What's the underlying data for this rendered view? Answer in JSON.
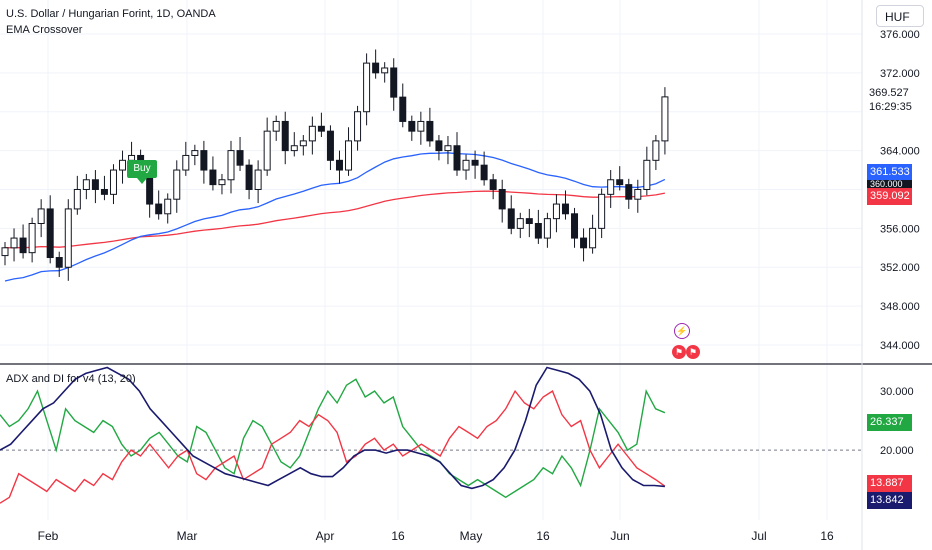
{
  "header": {
    "title": "U.S. Dollar / Hungarian Forint, 1D, OANDA",
    "indicator": "EMA Crossover",
    "currency": "HUF"
  },
  "price_info": {
    "last": "369.527",
    "countdown": "16:29:35"
  },
  "badges": {
    "ema_fast": "361.533",
    "ema_slow": "359.092",
    "green_di": "26.337",
    "red_di": "13.887",
    "adx": "13.842",
    "hidden_level": "360.000"
  },
  "signal": {
    "label": "Buy"
  },
  "subpane": {
    "title": "ADX and DI for v4 (13, 20)"
  },
  "colors": {
    "up": "#089981",
    "down": "#131722",
    "ema_fast": "#2962ff",
    "ema_slow": "#f23645",
    "di_plus": "#22a843",
    "di_minus": "#f23645",
    "adx": "#1a1a6e",
    "buy": "#22a843"
  },
  "chart_data": [
    {
      "type": "candlestick",
      "symbol": "USDHUF",
      "yticks": [
        344,
        348,
        352,
        356,
        360,
        364,
        368,
        372,
        376
      ],
      "ytick_labels": [
        "344.000",
        "348.000",
        "352.000",
        "356.000",
        "",
        "364.000",
        "",
        "372.000",
        "376.000"
      ],
      "xticks": [
        "Feb",
        "Mar",
        "Apr",
        "16",
        "May",
        "16",
        "Jun",
        "Jul",
        "16"
      ],
      "close_path": [
        354,
        355,
        353.5,
        356.5,
        358,
        353,
        352,
        358,
        360,
        361,
        360,
        359.5,
        362,
        363,
        363.5,
        362,
        358.5,
        357.5,
        359,
        362,
        363.5,
        364,
        362,
        360.5,
        361,
        364,
        362.5,
        360,
        362,
        366,
        367,
        364,
        364.5,
        365,
        366.5,
        366,
        363,
        362,
        365,
        368,
        373,
        372,
        372.5,
        369.5,
        367,
        366,
        367,
        365,
        364,
        364.5,
        362,
        363,
        362.5,
        361,
        360,
        358,
        356,
        357,
        356.5,
        355,
        357,
        358.5,
        357.5,
        355,
        354,
        356,
        359.5,
        361,
        360.5,
        359,
        360,
        363,
        365,
        369.527
      ],
      "series": [
        {
          "name": "EMA fast",
          "values_start": 350.4,
          "values_end": 361.533
        },
        {
          "name": "EMA slow",
          "values_start": 354.0,
          "values_end": 359.092
        }
      ],
      "annotations": [
        "Buy"
      ]
    },
    {
      "type": "line",
      "title": "ADX and DI for v4 (13, 20)",
      "ylim": [
        9,
        36
      ],
      "yticks": [
        20,
        30
      ],
      "ytick_labels": [
        "20.000",
        "30.000"
      ],
      "reference_line": 20,
      "series": [
        {
          "name": "DI+",
          "values": [
            26,
            24,
            25,
            27,
            30,
            25,
            20,
            27,
            25,
            24,
            23,
            25,
            24,
            21,
            19,
            20,
            22,
            23,
            21,
            19,
            18,
            24,
            23,
            20,
            17,
            16,
            22,
            25,
            24,
            21,
            18,
            17,
            19,
            23,
            27,
            30,
            28,
            31,
            32,
            29,
            30,
            28,
            29,
            24,
            22,
            20,
            19,
            18,
            16,
            15,
            14,
            15,
            14,
            13,
            12,
            13,
            14,
            15,
            17,
            16,
            19,
            17,
            14,
            20,
            27,
            25,
            23,
            20,
            21,
            30,
            27,
            26.337
          ]
        },
        {
          "name": "DI-",
          "values": [
            11,
            12,
            16,
            15,
            14,
            13,
            15,
            14,
            13,
            15,
            14,
            16,
            15,
            18,
            20,
            19,
            21,
            19,
            17,
            19,
            20,
            16,
            15,
            17,
            18,
            19,
            15,
            16,
            17,
            21,
            22,
            23,
            25,
            24,
            26,
            25,
            23,
            18,
            19,
            21,
            22,
            20,
            21,
            19,
            20,
            21,
            20,
            19,
            22,
            24,
            23,
            22,
            24,
            25,
            27,
            30,
            28,
            27,
            29,
            30,
            26,
            24,
            25,
            20,
            17,
            19,
            21,
            19,
            17,
            16,
            15,
            13.887
          ]
        },
        {
          "name": "ADX",
          "values": [
            20,
            21,
            23,
            25,
            27,
            28,
            30,
            32,
            33,
            33.5,
            34,
            33,
            32,
            30,
            27,
            25,
            23,
            21,
            19,
            18,
            17,
            16,
            15.5,
            15,
            14.5,
            14,
            15,
            16,
            17,
            16,
            15.5,
            15.5,
            17,
            19,
            20,
            20,
            19.5,
            20,
            20,
            19.5,
            19,
            18,
            16,
            14,
            13.5,
            14,
            15,
            17,
            20,
            25,
            31,
            34,
            33.5,
            33,
            32,
            30,
            26,
            20,
            17,
            15,
            14,
            14,
            13.842
          ]
        }
      ]
    }
  ]
}
